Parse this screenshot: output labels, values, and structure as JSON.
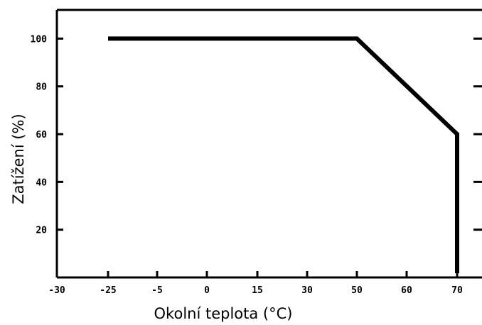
{
  "chart_data": {
    "type": "line",
    "title": "",
    "xlabel": "Okolní teplota (°C)",
    "ylabel": "Zatížení (%)",
    "x_tick_labels": [
      "-30",
      "-25",
      "-5",
      "0",
      "15",
      "30",
      "50",
      "60",
      "70"
    ],
    "y_tick_labels": [
      "20",
      "40",
      "60",
      "80",
      "100"
    ],
    "y_ticks": [
      20,
      40,
      60,
      80,
      100
    ],
    "ylim": [
      0,
      112
    ],
    "grid": false,
    "legend": "none",
    "series": [
      {
        "points": [
          {
            "x": "-25",
            "y": 100
          },
          {
            "x": "50",
            "y": 100
          },
          {
            "x": "70",
            "y": 60
          },
          {
            "x": "70",
            "y": 0
          }
        ]
      }
    ],
    "line_color": "#000000"
  }
}
